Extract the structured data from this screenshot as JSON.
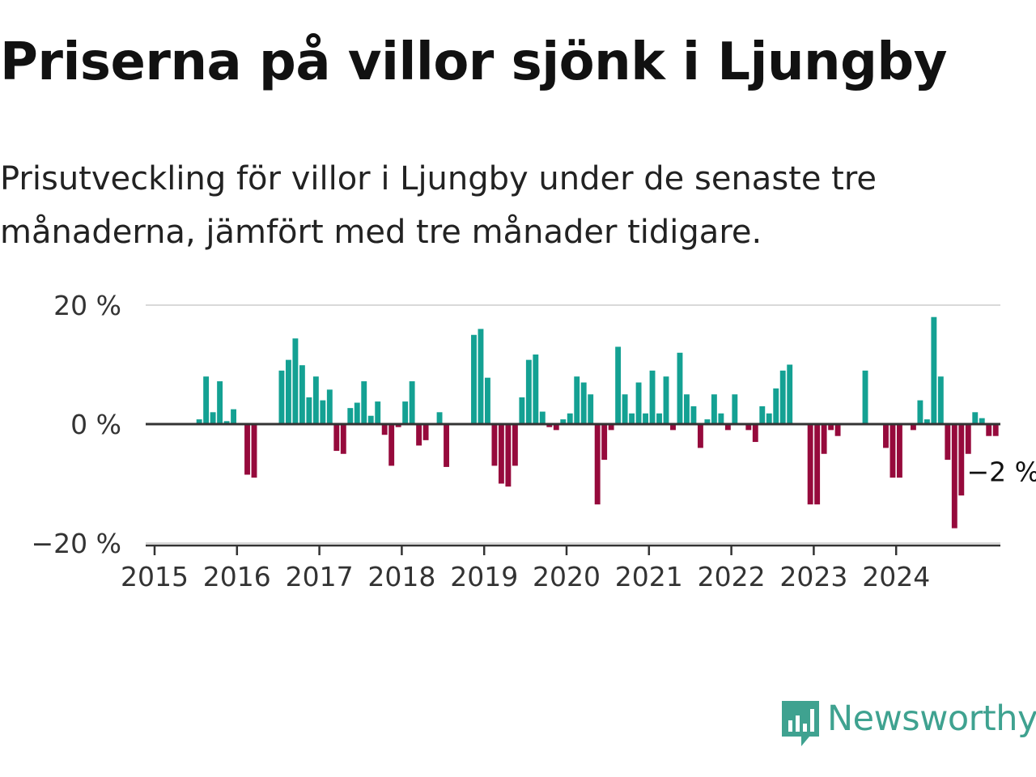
{
  "title": "Priserna på villor sjönk i Ljungby",
  "subtitle": "Prisutveckling för villor i Ljungby under de senaste tre månaderna, jämfört med tre månader tidigare.",
  "brand": {
    "name": "Newsworthy",
    "icon": "newsworthy-logo-icon",
    "color": "#3fa290"
  },
  "colors": {
    "positive": "#14a193",
    "negative": "#960a3c",
    "grid": "#d9d9d9",
    "axis": "#333333"
  },
  "chart_data": {
    "type": "bar",
    "xlabel": "",
    "ylabel": "",
    "ylim": [
      -20,
      20
    ],
    "y_ticks": [
      {
        "value": 20,
        "label": "20 %"
      },
      {
        "value": 0,
        "label": "0 %"
      },
      {
        "value": -20,
        "label": "−20 %"
      }
    ],
    "x_ticks": [
      "2015",
      "2016",
      "2017",
      "2018",
      "2019",
      "2020",
      "2021",
      "2022",
      "2023",
      "2024"
    ],
    "start": "2015-01",
    "end": "2024-12",
    "grid": true,
    "last_value_label": "−2 %",
    "values": [
      0,
      0,
      0,
      0,
      0,
      0,
      0.8,
      8.0,
      2.0,
      7.2,
      0.5,
      2.5,
      0,
      -8.5,
      -9.0,
      0,
      0,
      0,
      9.0,
      10.8,
      14.4,
      9.9,
      4.5,
      8.0,
      4.0,
      5.8,
      -4.5,
      -5.0,
      2.7,
      3.6,
      7.2,
      1.4,
      3.8,
      -1.8,
      -7.0,
      -0.5,
      3.8,
      7.2,
      -3.6,
      -2.7,
      0,
      2.0,
      -7.2,
      0,
      0,
      0,
      15.0,
      16.0,
      7.8,
      -7.0,
      -10.0,
      -10.5,
      -7.0,
      4.5,
      10.8,
      11.7,
      2.1,
      -0.5,
      -1.0,
      0.8,
      1.8,
      8.0,
      7.0,
      5.0,
      -13.5,
      -6.0,
      -1.0,
      13.0,
      5.0,
      1.8,
      7.0,
      1.8,
      9.0,
      1.8,
      8.0,
      -1.0,
      12.0,
      5.0,
      3.0,
      -4.0,
      0.8,
      5.0,
      1.8,
      -1.0,
      5.0,
      0,
      -1.0,
      -3.0,
      3.0,
      1.8,
      6.0,
      9.0,
      10.0,
      0,
      0,
      -13.5,
      -13.5,
      -5.0,
      -1.0,
      -2.0,
      0,
      0,
      0,
      9.0,
      0,
      0,
      -4.0,
      -9.0,
      -9.0,
      0,
      -1.0,
      4.0,
      0.8,
      18.0,
      8.0,
      -6.0,
      -17.5,
      -12.0,
      -5.0,
      2.0,
      1.0,
      -2.0,
      -2.0
    ]
  }
}
